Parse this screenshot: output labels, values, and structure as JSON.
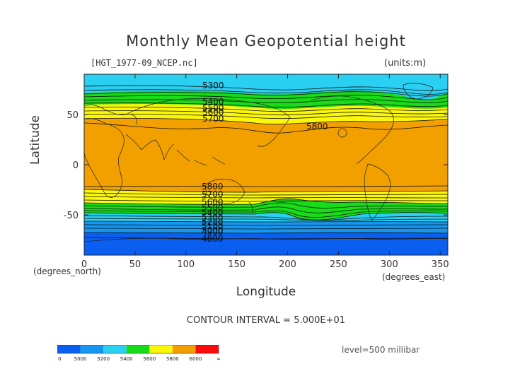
{
  "header": {
    "title": "Monthly Mean Geopotential height",
    "file": "[HGT_1977-09_NCEP.nc]",
    "units": "(units:m)"
  },
  "axes": {
    "xlabel": "Longitude",
    "ylabel": "Latitude",
    "x_unit": "(degrees_east)",
    "y_unit": "(degrees_north)",
    "x_range": [
      0,
      357.5
    ],
    "y_range": [
      -90,
      90
    ],
    "x_ticks": [
      "0",
      "50",
      "100",
      "150",
      "200",
      "250",
      "300",
      "350"
    ],
    "y_ticks": [
      "50",
      "0",
      "-50"
    ]
  },
  "contour_labels": [
    "5300",
    "5400",
    "5500",
    "5600",
    "5700",
    "5800",
    "5800",
    "5700",
    "5600",
    "5500",
    "5400",
    "5300",
    "5200",
    "5100",
    "5000",
    "4900",
    "4800"
  ],
  "footer": {
    "interval": "CONTOUR INTERVAL = 5.000E+01",
    "level": "level=500 millibar"
  },
  "legend": {
    "labels": [
      "0",
      "5000",
      "5200",
      "5400",
      "5600",
      "5800",
      "6000",
      "∞"
    ],
    "colors": [
      "#0a5ff0",
      "#1596f0",
      "#29d0f2",
      "#17dc17",
      "#fbf70b",
      "#f2a000",
      "#fa0a0a"
    ]
  },
  "colors": {
    "band_4800": "#0a5ff0",
    "band_5100": "#1596f0",
    "band_5300": "#29d0f2",
    "band_5500": "#17dc17",
    "band_5700": "#fbf70b",
    "band_5800": "#f2a000"
  }
}
